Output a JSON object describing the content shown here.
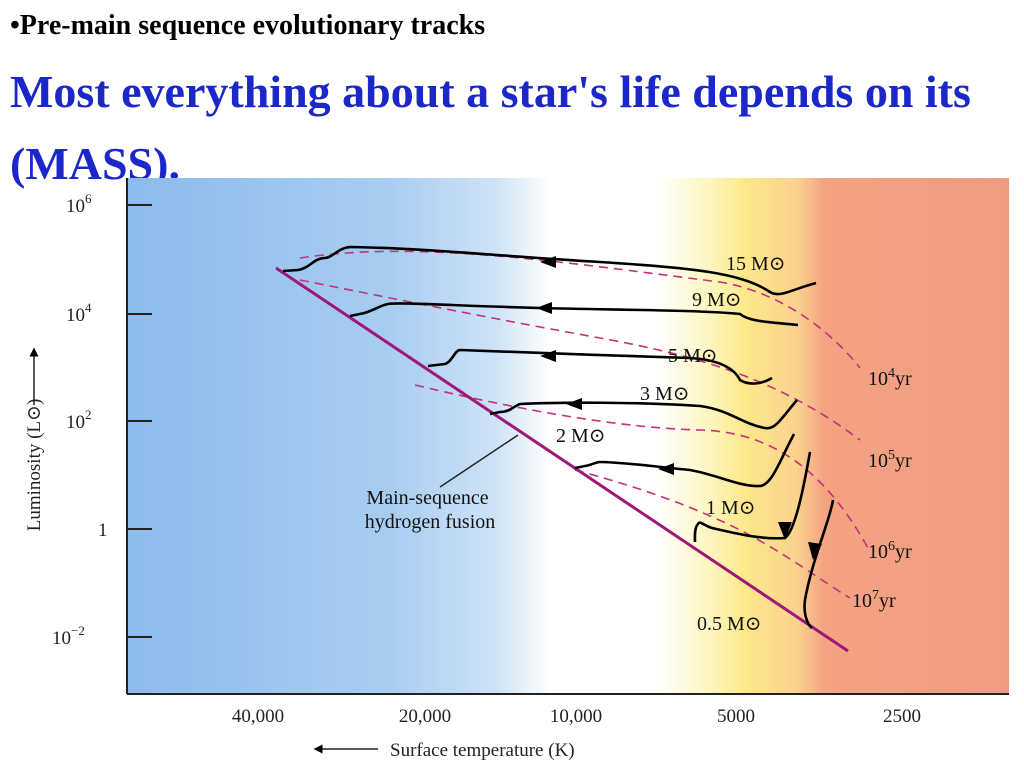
{
  "slide": {
    "bullet": "•Pre-main sequence evolutionary tracks",
    "headline": "Most everything about a star's life depends on its (MASS)."
  },
  "diagram": {
    "x_axis_title": "Surface temperature (K)",
    "y_axis_title": "Luminosity (L⊙)",
    "x_ticks": [
      "40,000",
      "20,000",
      "10,000",
      "5000",
      "2500"
    ],
    "y_ticks": [
      {
        "base": "10",
        "exp": "6"
      },
      {
        "base": "10",
        "exp": "4"
      },
      {
        "base": "10",
        "exp": "2"
      },
      {
        "base": "1",
        "exp": ""
      },
      {
        "base": "10",
        "exp": "−2"
      }
    ],
    "tracks": [
      {
        "mass": "15",
        "unit": "M⊙"
      },
      {
        "mass": "9",
        "unit": "M⊙"
      },
      {
        "mass": "5",
        "unit": "M⊙"
      },
      {
        "mass": "3",
        "unit": "M⊙"
      },
      {
        "mass": "2",
        "unit": "M⊙"
      },
      {
        "mass": "1",
        "unit": "M⊙"
      },
      {
        "mass": "0.5",
        "unit": "M⊙"
      }
    ],
    "isochrones": [
      {
        "base": "10",
        "exp": "4",
        "unit": "yr"
      },
      {
        "base": "10",
        "exp": "5",
        "unit": "yr"
      },
      {
        "base": "10",
        "exp": "6",
        "unit": "yr"
      },
      {
        "base": "10",
        "exp": "7",
        "unit": "yr"
      }
    ],
    "main_sequence_label": [
      "Main-sequence",
      "hydrogen fusion"
    ],
    "colors": {
      "main_sequence": "#a0167a",
      "isochrone": "#c2337a",
      "track": "#000000",
      "hot": "#8ab8ea",
      "warm": "#fde98a",
      "cool": "#ee9b82"
    }
  }
}
